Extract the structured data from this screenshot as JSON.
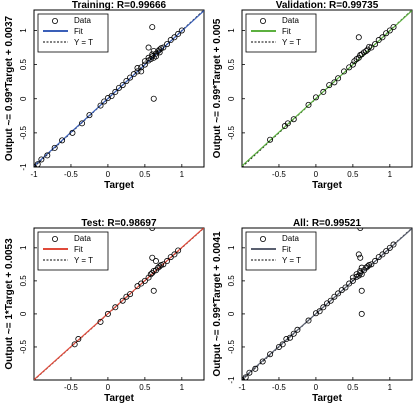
{
  "chart_data": [
    {
      "type": "scatter",
      "title": "Training: R=0.99666",
      "xlabel": "Target",
      "ylabel": "Output ~= 0.99*Target + 0.0037",
      "xlim": [
        -1,
        1.3
      ],
      "ylim": [
        -1,
        1.3
      ],
      "xticks": [
        "-1",
        "-0.5",
        "0",
        "0.5",
        "1"
      ],
      "yticks": [
        "-1",
        "-0.5",
        "0",
        "0.5",
        "1"
      ],
      "fit": {
        "slope": 0.99,
        "intercept": 0.0037,
        "color": "#3a5fb8"
      },
      "legend": {
        "placement": "top-left",
        "entries": [
          "Data",
          "Fit",
          "Y = T"
        ]
      },
      "grid": false,
      "points": [
        [
          -1,
          -1
        ],
        [
          -0.95,
          -0.96
        ],
        [
          -0.9,
          -0.89
        ],
        [
          -0.82,
          -0.83
        ],
        [
          -0.72,
          -0.72
        ],
        [
          -0.62,
          -0.61
        ],
        [
          -0.48,
          -0.5
        ],
        [
          -0.35,
          -0.36
        ],
        [
          -0.25,
          -0.24
        ],
        [
          -0.1,
          -0.1
        ],
        [
          -0.05,
          -0.04
        ],
        [
          0,
          0.01
        ],
        [
          0.05,
          0.04
        ],
        [
          0.1,
          0.1
        ],
        [
          0.15,
          0.16
        ],
        [
          0.2,
          0.2
        ],
        [
          0.25,
          0.26
        ],
        [
          0.3,
          0.31
        ],
        [
          0.35,
          0.36
        ],
        [
          0.4,
          0.4
        ],
        [
          0.45,
          0.46
        ],
        [
          0.5,
          0.5
        ],
        [
          0.5,
          0.55
        ],
        [
          0.55,
          0.56
        ],
        [
          0.55,
          0.6
        ],
        [
          0.58,
          0.58
        ],
        [
          0.6,
          0.62
        ],
        [
          0.6,
          0.65
        ],
        [
          0.62,
          0.6
        ],
        [
          0.62,
          0.7
        ],
        [
          0.65,
          0.66
        ],
        [
          0.65,
          0.62
        ],
        [
          0.68,
          0.7
        ],
        [
          0.7,
          0.72
        ],
        [
          0.7,
          0.68
        ],
        [
          0.72,
          0.74
        ],
        [
          0.75,
          0.75
        ],
        [
          0.8,
          0.8
        ],
        [
          0.85,
          0.86
        ],
        [
          0.9,
          0.9
        ],
        [
          0.95,
          0.95
        ],
        [
          1,
          1
        ],
        [
          0.6,
          1.05
        ],
        [
          0.62,
          0
        ],
        [
          0.55,
          0.75
        ],
        [
          0.45,
          0.4
        ],
        [
          0.4,
          0.45
        ]
      ]
    },
    {
      "type": "scatter",
      "title": "Validation: R=0.99735",
      "xlabel": "Target",
      "ylabel": "Output ~= 0.99*Target + 0.005",
      "xlim": [
        -1,
        1.3
      ],
      "ylim": [
        -1,
        1.3
      ],
      "xticks": [
        "-0.5",
        "0",
        "0.5",
        "1"
      ],
      "yticks": [
        "-0.5",
        "0",
        "0.5",
        "1"
      ],
      "fit": {
        "slope": 0.99,
        "intercept": 0.005,
        "color": "#5cb03f"
      },
      "legend": {
        "placement": "top-left",
        "entries": [
          "Data",
          "Fit",
          "Y = T"
        ]
      },
      "grid": false,
      "points": [
        [
          -0.62,
          -0.6
        ],
        [
          -0.42,
          -0.4
        ],
        [
          -0.38,
          -0.36
        ],
        [
          -0.3,
          -0.3
        ],
        [
          -0.1,
          -0.09
        ],
        [
          0.0,
          0.02
        ],
        [
          0.1,
          0.1
        ],
        [
          0.18,
          0.2
        ],
        [
          0.25,
          0.24
        ],
        [
          0.3,
          0.3
        ],
        [
          0.38,
          0.4
        ],
        [
          0.45,
          0.46
        ],
        [
          0.5,
          0.5
        ],
        [
          0.52,
          0.55
        ],
        [
          0.55,
          0.58
        ],
        [
          0.58,
          0.6
        ],
        [
          0.6,
          0.64
        ],
        [
          0.62,
          0.65
        ],
        [
          0.65,
          0.68
        ],
        [
          0.68,
          0.7
        ],
        [
          0.7,
          0.72
        ],
        [
          0.72,
          0.76
        ],
        [
          0.75,
          0.75
        ],
        [
          0.8,
          0.8
        ],
        [
          0.85,
          0.86
        ],
        [
          0.9,
          0.9
        ],
        [
          0.95,
          0.96
        ],
        [
          1,
          1
        ],
        [
          1.05,
          1.05
        ],
        [
          0.58,
          0.9
        ]
      ]
    },
    {
      "type": "scatter",
      "title": "Test: R=0.98697",
      "xlabel": "Target",
      "ylabel": "Output ~= 1*Target + 0.0053",
      "xlim": [
        -1,
        1.3
      ],
      "ylim": [
        -1,
        1.3
      ],
      "xticks": [
        "-0.5",
        "0",
        "0.5",
        "1"
      ],
      "yticks": [
        "-0.5",
        "0",
        "0.5",
        "1"
      ],
      "fit": {
        "slope": 1,
        "intercept": 0.0053,
        "color": "#e04a3a"
      },
      "legend": {
        "placement": "top-left",
        "entries": [
          "Data",
          "Fit",
          "Y = T"
        ]
      },
      "grid": false,
      "points": [
        [
          -0.45,
          -0.46
        ],
        [
          -0.4,
          -0.38
        ],
        [
          -0.1,
          -0.12
        ],
        [
          0.0,
          0.0
        ],
        [
          0.1,
          0.1
        ],
        [
          0.2,
          0.2
        ],
        [
          0.25,
          0.26
        ],
        [
          0.3,
          0.3
        ],
        [
          0.4,
          0.42
        ],
        [
          0.45,
          0.46
        ],
        [
          0.5,
          0.5
        ],
        [
          0.55,
          0.55
        ],
        [
          0.58,
          0.6
        ],
        [
          0.6,
          0.62
        ],
        [
          0.62,
          0.65
        ],
        [
          0.65,
          0.66
        ],
        [
          0.68,
          0.7
        ],
        [
          0.7,
          0.72
        ],
        [
          0.72,
          0.74
        ],
        [
          0.75,
          0.75
        ],
        [
          0.8,
          0.8
        ],
        [
          0.85,
          0.86
        ],
        [
          0.9,
          0.9
        ],
        [
          0.95,
          0.96
        ],
        [
          0.6,
          1.3
        ],
        [
          0.62,
          0.35
        ],
        [
          0.6,
          0.85
        ],
        [
          0.65,
          0.8
        ]
      ]
    },
    {
      "type": "scatter",
      "title": "All: R=0.99521",
      "xlabel": "Target",
      "ylabel": "Output ~= 0.99*Target + 0.0041",
      "xlim": [
        -1,
        1.3
      ],
      "ylim": [
        -1,
        1.3
      ],
      "xticks": [
        "-1",
        "-0.5",
        "0",
        "0.5",
        "1"
      ],
      "yticks": [
        "-1",
        "-0.5",
        "0",
        "0.5",
        "1"
      ],
      "fit": {
        "slope": 0.99,
        "intercept": 0.0041,
        "color": "#5a6070"
      },
      "legend": {
        "placement": "top-left",
        "entries": [
          "Data",
          "Fit",
          "Y = T"
        ]
      },
      "grid": false,
      "points": [
        [
          -1,
          -1
        ],
        [
          -0.95,
          -0.96
        ],
        [
          -0.9,
          -0.89
        ],
        [
          -0.82,
          -0.83
        ],
        [
          -0.72,
          -0.72
        ],
        [
          -0.62,
          -0.61
        ],
        [
          -0.5,
          -0.5
        ],
        [
          -0.45,
          -0.46
        ],
        [
          -0.4,
          -0.38
        ],
        [
          -0.35,
          -0.36
        ],
        [
          -0.3,
          -0.3
        ],
        [
          -0.25,
          -0.24
        ],
        [
          -0.1,
          -0.1
        ],
        [
          0,
          0.01
        ],
        [
          0.05,
          0.04
        ],
        [
          0.1,
          0.1
        ],
        [
          0.15,
          0.16
        ],
        [
          0.2,
          0.2
        ],
        [
          0.25,
          0.26
        ],
        [
          0.3,
          0.31
        ],
        [
          0.35,
          0.36
        ],
        [
          0.4,
          0.4
        ],
        [
          0.45,
          0.46
        ],
        [
          0.5,
          0.5
        ],
        [
          0.5,
          0.55
        ],
        [
          0.55,
          0.56
        ],
        [
          0.55,
          0.6
        ],
        [
          0.58,
          0.58
        ],
        [
          0.6,
          0.62
        ],
        [
          0.6,
          0.65
        ],
        [
          0.62,
          0.6
        ],
        [
          0.62,
          0.7
        ],
        [
          0.65,
          0.66
        ],
        [
          0.68,
          0.7
        ],
        [
          0.7,
          0.72
        ],
        [
          0.72,
          0.74
        ],
        [
          0.75,
          0.75
        ],
        [
          0.8,
          0.8
        ],
        [
          0.85,
          0.86
        ],
        [
          0.9,
          0.9
        ],
        [
          0.95,
          0.95
        ],
        [
          1,
          1
        ],
        [
          1.05,
          1.05
        ],
        [
          0.6,
          1.3
        ],
        [
          0.62,
          0
        ],
        [
          0.62,
          0.35
        ],
        [
          0.6,
          0.85
        ],
        [
          0.58,
          0.9
        ]
      ]
    }
  ]
}
